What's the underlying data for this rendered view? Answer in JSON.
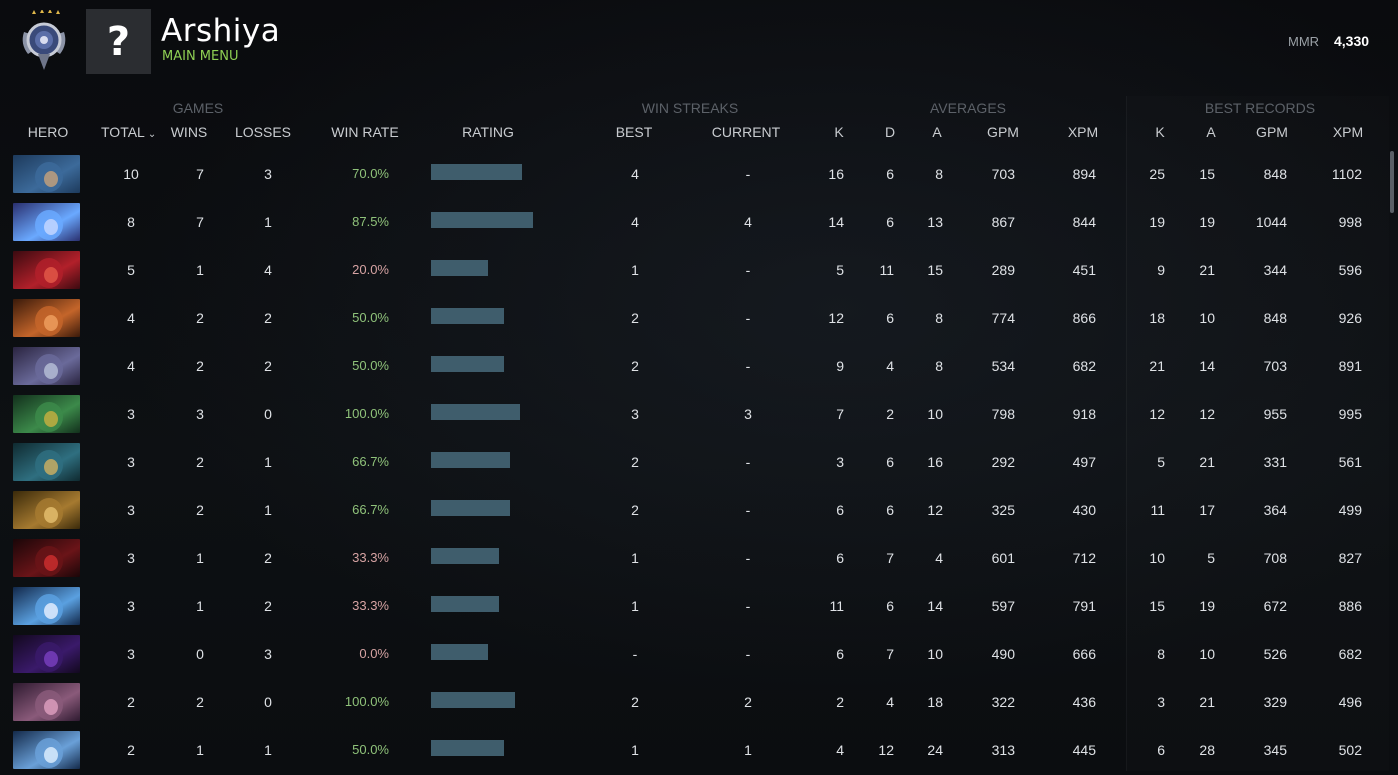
{
  "header": {
    "player_name": "Arshiya",
    "main_menu_label": "MAIN MENU",
    "avatar_placeholder": "?",
    "mmr_label": "MMR",
    "mmr_value": "4,330"
  },
  "colors": {
    "win_high": "#8fc27a",
    "win_low": "#d6a3a3",
    "rating_bar": "#3f5d6c",
    "main_menu": "#8ecf53"
  },
  "groups": {
    "games": "GAMES",
    "win_streaks": "WIN STREAKS",
    "averages": "AVERAGES",
    "best_records": "BEST RECORDS"
  },
  "columns": {
    "hero": "HERO",
    "total": "TOTAL",
    "wins": "WINS",
    "losses": "LOSSES",
    "win_rate": "WIN RATE",
    "rating": "RATING",
    "best": "BEST",
    "current": "CURRENT",
    "avg_k": "K",
    "avg_d": "D",
    "avg_a": "A",
    "avg_gpm": "GPM",
    "avg_xpm": "XPM",
    "rec_k": "K",
    "rec_a": "A",
    "rec_gpm": "GPM",
    "rec_xpm": "XPM"
  },
  "rows": [
    {
      "hero_icon": "hero-portrait-blue-hooded",
      "total": "10",
      "wins": "7",
      "losses": "3",
      "win_rate": "70.0%",
      "rating": 0.89,
      "best": "4",
      "current": "-",
      "avg_k": "16",
      "avg_d": "6",
      "avg_a": "8",
      "avg_gpm": "703",
      "avg_xpm": "894",
      "rec_k": "25",
      "rec_a": "15",
      "rec_gpm": "848",
      "rec_xpm": "1102"
    },
    {
      "hero_icon": "hero-portrait-arcane-orb",
      "total": "8",
      "wins": "7",
      "losses": "1",
      "win_rate": "87.5%",
      "rating": 1.0,
      "best": "4",
      "current": "4",
      "avg_k": "14",
      "avg_d": "6",
      "avg_a": "13",
      "avg_gpm": "867",
      "avg_xpm": "844",
      "rec_k": "19",
      "rec_a": "19",
      "rec_gpm": "1044",
      "rec_xpm": "998"
    },
    {
      "hero_icon": "hero-portrait-red-demon",
      "total": "5",
      "wins": "1",
      "losses": "4",
      "win_rate": "20.0%",
      "rating": 0.56,
      "best": "1",
      "current": "-",
      "avg_k": "5",
      "avg_d": "11",
      "avg_a": "15",
      "avg_gpm": "289",
      "avg_xpm": "451",
      "rec_k": "9",
      "rec_a": "21",
      "rec_gpm": "344",
      "rec_xpm": "596"
    },
    {
      "hero_icon": "hero-portrait-orange-warrior",
      "total": "4",
      "wins": "2",
      "losses": "2",
      "win_rate": "50.0%",
      "rating": 0.72,
      "best": "2",
      "current": "-",
      "avg_k": "12",
      "avg_d": "6",
      "avg_a": "8",
      "avg_gpm": "774",
      "avg_xpm": "866",
      "rec_k": "18",
      "rec_a": "10",
      "rec_gpm": "848",
      "rec_xpm": "926"
    },
    {
      "hero_icon": "hero-portrait-purple-creature",
      "total": "4",
      "wins": "2",
      "losses": "2",
      "win_rate": "50.0%",
      "rating": 0.72,
      "best": "2",
      "current": "-",
      "avg_k": "9",
      "avg_d": "4",
      "avg_a": "8",
      "avg_gpm": "534",
      "avg_xpm": "682",
      "rec_k": "21",
      "rec_a": "14",
      "rec_gpm": "703",
      "rec_xpm": "891"
    },
    {
      "hero_icon": "hero-portrait-green-gorgon",
      "total": "3",
      "wins": "3",
      "losses": "0",
      "win_rate": "100.0%",
      "rating": 0.87,
      "best": "3",
      "current": "3",
      "avg_k": "7",
      "avg_d": "2",
      "avg_a": "10",
      "avg_gpm": "798",
      "avg_xpm": "918",
      "rec_k": "12",
      "rec_a": "12",
      "rec_gpm": "955",
      "rec_xpm": "995"
    },
    {
      "hero_icon": "hero-portrait-teal-mage",
      "total": "3",
      "wins": "2",
      "losses": "1",
      "win_rate": "66.7%",
      "rating": 0.77,
      "best": "2",
      "current": "-",
      "avg_k": "3",
      "avg_d": "6",
      "avg_a": "16",
      "avg_gpm": "292",
      "avg_xpm": "497",
      "rec_k": "5",
      "rec_a": "21",
      "rec_gpm": "331",
      "rec_xpm": "561"
    },
    {
      "hero_icon": "hero-portrait-golden-beast",
      "total": "3",
      "wins": "2",
      "losses": "1",
      "win_rate": "66.7%",
      "rating": 0.77,
      "best": "2",
      "current": "-",
      "avg_k": "6",
      "avg_d": "6",
      "avg_a": "12",
      "avg_gpm": "325",
      "avg_xpm": "430",
      "rec_k": "11",
      "rec_a": "17",
      "rec_gpm": "364",
      "rec_xpm": "499"
    },
    {
      "hero_icon": "hero-portrait-dark-knight",
      "total": "3",
      "wins": "1",
      "losses": "2",
      "win_rate": "33.3%",
      "rating": 0.67,
      "best": "1",
      "current": "-",
      "avg_k": "6",
      "avg_d": "7",
      "avg_a": "4",
      "avg_gpm": "601",
      "avg_xpm": "712",
      "rec_k": "10",
      "rec_a": "5",
      "rec_gpm": "708",
      "rec_xpm": "827"
    },
    {
      "hero_icon": "hero-portrait-storm-elder",
      "total": "3",
      "wins": "1",
      "losses": "2",
      "win_rate": "33.3%",
      "rating": 0.67,
      "best": "1",
      "current": "-",
      "avg_k": "11",
      "avg_d": "6",
      "avg_a": "14",
      "avg_gpm": "597",
      "avg_xpm": "791",
      "rec_k": "15",
      "rec_a": "19",
      "rec_gpm": "672",
      "rec_xpm": "886"
    },
    {
      "hero_icon": "hero-portrait-void-shadow",
      "total": "3",
      "wins": "0",
      "losses": "3",
      "win_rate": "0.0%",
      "rating": 0.56,
      "best": "-",
      "current": "-",
      "avg_k": "6",
      "avg_d": "7",
      "avg_a": "10",
      "avg_gpm": "490",
      "avg_xpm": "666",
      "rec_k": "8",
      "rec_a": "10",
      "rec_gpm": "526",
      "rec_xpm": "682"
    },
    {
      "hero_icon": "hero-portrait-pink-rogue",
      "total": "2",
      "wins": "2",
      "losses": "0",
      "win_rate": "100.0%",
      "rating": 0.82,
      "best": "2",
      "current": "2",
      "avg_k": "2",
      "avg_d": "4",
      "avg_a": "18",
      "avg_gpm": "322",
      "avg_xpm": "436",
      "rec_k": "3",
      "rec_a": "21",
      "rec_gpm": "329",
      "rec_xpm": "496"
    },
    {
      "hero_icon": "hero-portrait-ice-crystal",
      "total": "2",
      "wins": "1",
      "losses": "1",
      "win_rate": "50.0%",
      "rating": 0.72,
      "best": "1",
      "current": "1",
      "avg_k": "4",
      "avg_d": "12",
      "avg_a": "24",
      "avg_gpm": "313",
      "avg_xpm": "445",
      "rec_k": "6",
      "rec_a": "28",
      "rec_gpm": "345",
      "rec_xpm": "502"
    }
  ]
}
